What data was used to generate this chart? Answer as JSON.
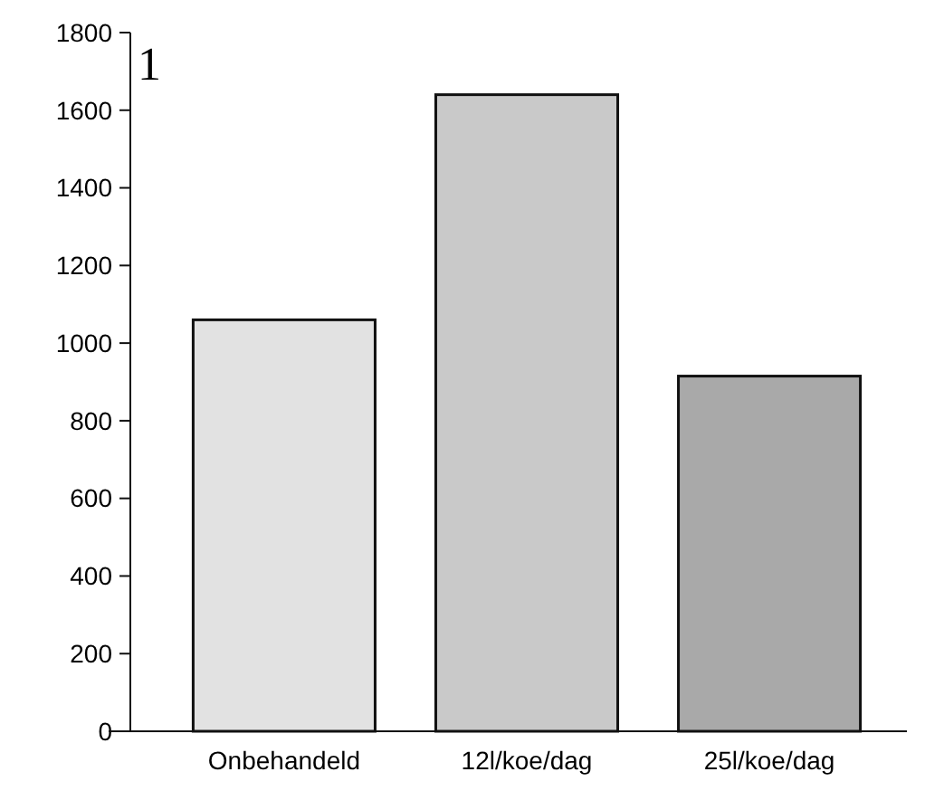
{
  "chart_data": {
    "type": "bar",
    "categories": [
      "Onbehandeld",
      "12l/koe/dag",
      "25l/koe/dag"
    ],
    "values": [
      1060,
      1640,
      915
    ],
    "colors": [
      "#e2e2e2",
      "#c9c9c9",
      "#a9a9a9"
    ],
    "ylim": [
      0,
      1800
    ],
    "yticks": [
      0,
      200,
      400,
      600,
      800,
      1000,
      1200,
      1400,
      1600,
      1800
    ],
    "annotations": [
      "1"
    ]
  }
}
